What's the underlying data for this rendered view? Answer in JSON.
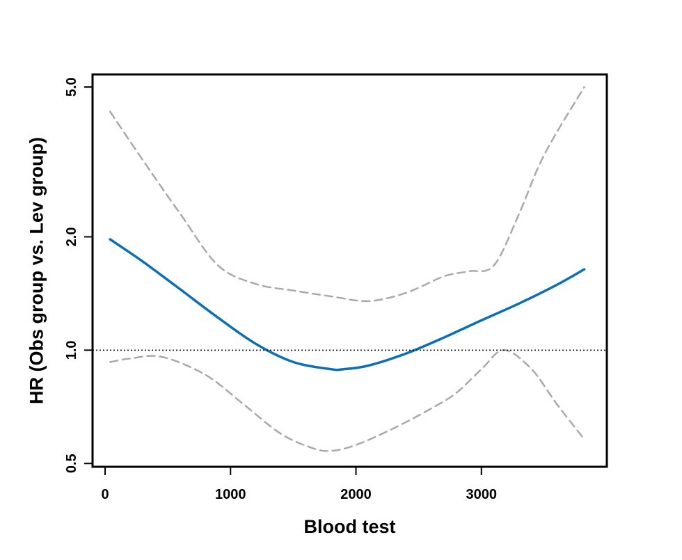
{
  "chart_data": {
    "type": "line",
    "title": "",
    "xlabel": "Blood test",
    "ylabel": "HR (Obs group vs. Lev group)",
    "y_scale": "log",
    "xlim": [
      -100,
      4000
    ],
    "ylim": [
      0.49,
      5.4
    ],
    "x_ticks": [
      0,
      1000,
      2000,
      3000
    ],
    "x_tick_labels": [
      "0",
      "1000",
      "2000",
      "3000"
    ],
    "y_ticks": [
      0.5,
      1.0,
      2.0,
      5.0
    ],
    "y_tick_labels": [
      "0.5",
      "1.0",
      "2.0",
      "5.0"
    ],
    "reference_line": {
      "y": 1.0,
      "style": "dotted",
      "color": "#000000"
    },
    "grid": false,
    "legend": "none",
    "series": [
      {
        "role": "estimate",
        "color": "#0a6fb4",
        "dash": "solid",
        "x": [
          40,
          300,
          600,
          900,
          1200,
          1500,
          1800,
          1900,
          2100,
          2400,
          2700,
          3000,
          3300,
          3600,
          3820
        ],
        "y": [
          1.97,
          1.72,
          1.45,
          1.22,
          1.04,
          0.93,
          0.89,
          0.89,
          0.91,
          0.98,
          1.08,
          1.2,
          1.33,
          1.49,
          1.64
        ]
      },
      {
        "role": "upper-ci",
        "color": "#a9a9a9",
        "dash": "dashed",
        "x": [
          40,
          300,
          600,
          900,
          1200,
          1500,
          1800,
          2100,
          2400,
          2700,
          2900,
          3100,
          3300,
          3500,
          3820
        ],
        "y": [
          4.3,
          3.2,
          2.3,
          1.68,
          1.5,
          1.44,
          1.39,
          1.35,
          1.42,
          1.57,
          1.62,
          1.68,
          2.3,
          3.3,
          5.0
        ]
      },
      {
        "role": "lower-ci",
        "color": "#a9a9a9",
        "dash": "dashed",
        "x": [
          40,
          200,
          450,
          800,
          1100,
          1400,
          1650,
          1800,
          2000,
          2300,
          2600,
          2800,
          3000,
          3180,
          3400,
          3600,
          3820
        ],
        "y": [
          0.93,
          0.95,
          0.96,
          0.86,
          0.72,
          0.6,
          0.55,
          0.54,
          0.56,
          0.62,
          0.7,
          0.77,
          0.89,
          1.0,
          0.89,
          0.72,
          0.58
        ]
      }
    ]
  }
}
